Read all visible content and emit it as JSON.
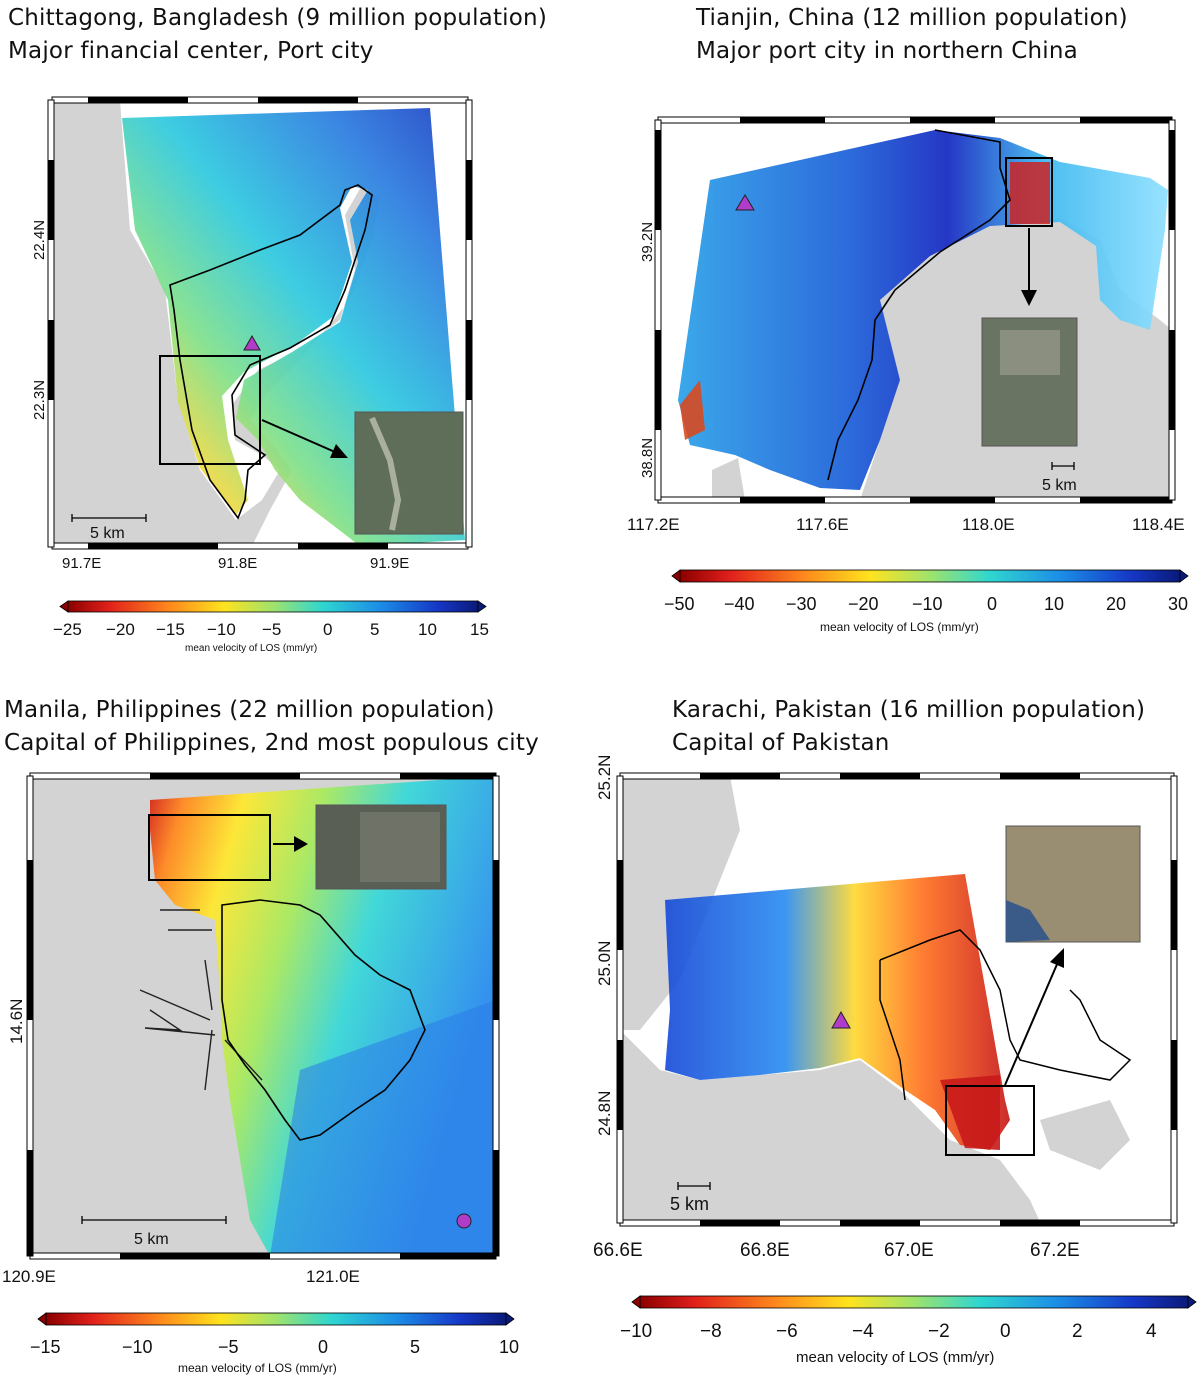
{
  "panels": [
    {
      "id": "chittagong",
      "title_line1": "Chittagong, Bangladesh (9 million population)",
      "title_line2": "Major financial center, Port city",
      "lat_labels": [
        "22.4N",
        "22.3N"
      ],
      "lon_labels": [
        "91.7E",
        "91.8E",
        "91.9E"
      ],
      "scale_bar": "5 km",
      "colorbar_ticks": [
        "−25",
        "−20",
        "−15",
        "−10",
        "−5",
        "0",
        "5",
        "10",
        "15"
      ],
      "colorbar_title": "mean velocity of LOS (mm/yr)"
    },
    {
      "id": "tianjin",
      "title_line1": "Tianjin, China (12 million population)",
      "title_line2": "Major port city in northern China",
      "lat_labels": [
        "39.2N",
        "38.8N"
      ],
      "lon_labels": [
        "117.2E",
        "117.6E",
        "118.0E",
        "118.4E"
      ],
      "scale_bar": "5 km",
      "colorbar_ticks": [
        "−50",
        "−40",
        "−30",
        "−20",
        "−10",
        "0",
        "10",
        "20",
        "30"
      ],
      "colorbar_title": "mean velocity of LOS (mm/yr)"
    },
    {
      "id": "manila",
      "title_line1": "Manila, Philippines (22 million population)",
      "title_line2": "Capital of Philippines, 2nd most populous city",
      "lat_labels": [
        "14.6N"
      ],
      "lon_labels": [
        "120.9E",
        "121.0E"
      ],
      "scale_bar": "5 km",
      "colorbar_ticks": [
        "−15",
        "−10",
        "−5",
        "0",
        "5",
        "10"
      ],
      "colorbar_title": "mean velocity of LOS (mm/yr)"
    },
    {
      "id": "karachi",
      "title_line1": "Karachi, Pakistan (16 million population)",
      "title_line2": "Capital of Pakistan",
      "lat_labels": [
        "25.2N",
        "25.0N",
        "24.8N"
      ],
      "lon_labels": [
        "66.6E",
        "66.8E",
        "67.0E",
        "67.2E"
      ],
      "scale_bar": "5 km",
      "colorbar_ticks": [
        "−10",
        "−8",
        "−6",
        "−4",
        "−2",
        "0",
        "2",
        "4"
      ],
      "colorbar_title": "mean velocity of LOS (mm/yr)"
    }
  ],
  "colors": {
    "land": "#d3d3d3",
    "boundary": "#000000",
    "marker": "#b03cc8"
  }
}
